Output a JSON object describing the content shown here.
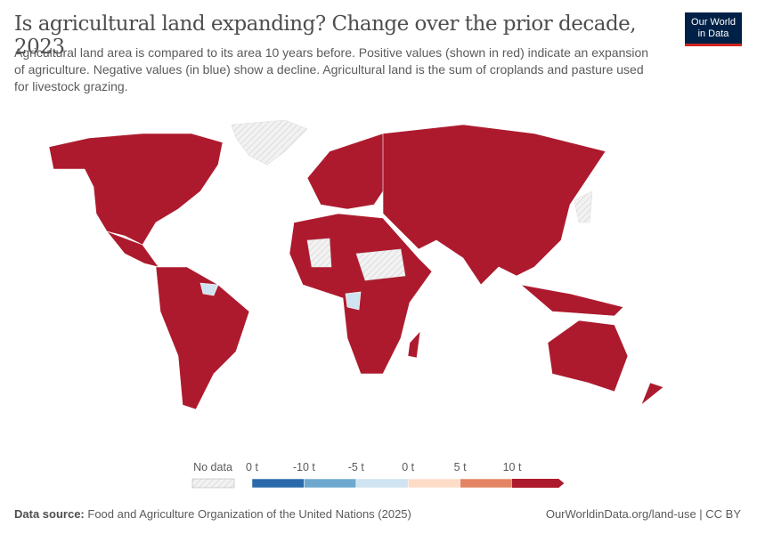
{
  "header": {
    "title": "Is agricultural land expanding? Change over the prior decade, 2023",
    "subtitle": "Agricultural land area is compared to its area 10 years before. Positive values (shown in red) indicate an expansion of agriculture. Negative values (in blue) show a decline. Agricultural land is the sum of croplands and pasture used for livestock grazing.",
    "logo": [
      "Our World",
      "in Data"
    ]
  },
  "legend": {
    "no_data": "No data",
    "labels": [
      "0 t",
      "-10 t",
      "-5 t",
      "0 t",
      "5 t",
      "10 t"
    ],
    "colors": [
      "#2a6aaa",
      "#6ea8cf",
      "#cfe3f0",
      "#fddcc8",
      "#e58462",
      "#ad1a2e"
    ]
  },
  "footer": {
    "source_label": "Data source:",
    "source": "Food and Agriculture Organization of the United Nations (2025)",
    "url": "OurWorldinData.org/land-use | CC BY"
  }
}
